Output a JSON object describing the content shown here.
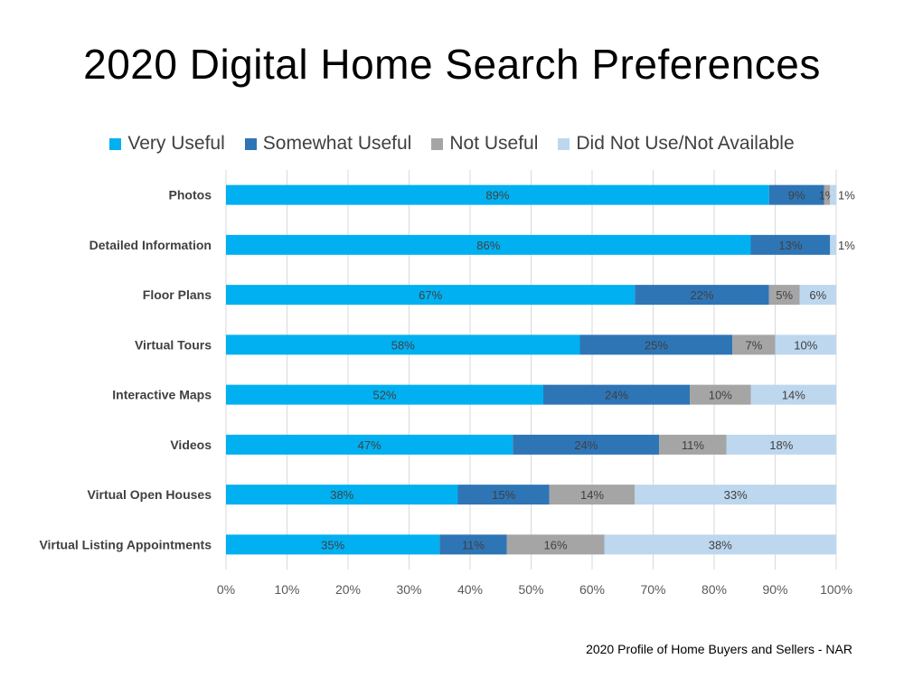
{
  "title": "2020 Digital Home Search Preferences",
  "source": "2020 Profile of Home Buyers and Sellers - NAR",
  "chart_data": {
    "type": "bar",
    "orientation": "horizontal",
    "stacked": true,
    "title": "2020 Digital Home Search Preferences",
    "categories": [
      "Photos",
      "Detailed Information",
      "Floor Plans",
      "Virtual Tours",
      "Interactive Maps",
      "Videos",
      "Virtual Open Houses",
      "Virtual Listing Appointments"
    ],
    "series": [
      {
        "name": "Very Useful",
        "color": "#00B0F0",
        "values": [
          89,
          86,
          67,
          58,
          52,
          47,
          38,
          35
        ]
      },
      {
        "name": "Somewhat Useful",
        "color": "#2E75B6",
        "values": [
          9,
          13,
          22,
          25,
          24,
          24,
          15,
          11
        ]
      },
      {
        "name": "Not Useful",
        "color": "#A5A5A5",
        "values": [
          1,
          0,
          5,
          7,
          10,
          11,
          14,
          16
        ]
      },
      {
        "name": "Did Not Use/Not Available",
        "color": "#BDD7EE",
        "values": [
          1,
          1,
          6,
          10,
          14,
          18,
          33,
          38
        ]
      }
    ],
    "xlim": [
      0,
      100
    ],
    "xticks": [
      "0%",
      "10%",
      "20%",
      "30%",
      "40%",
      "50%",
      "60%",
      "70%",
      "80%",
      "90%",
      "100%"
    ],
    "grid": true,
    "legend_position": "top"
  }
}
